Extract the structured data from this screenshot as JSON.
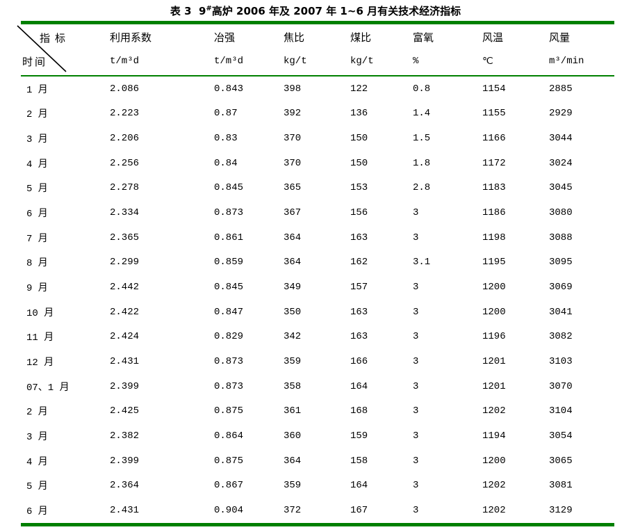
{
  "page": {
    "background": "#ffffff"
  },
  "colors": {
    "border_green": "#008000",
    "text": "#000000",
    "diagonal": "#000000"
  },
  "title": {
    "prefix": "表 3  9",
    "superscript": "#",
    "suffix": "高炉 2006 年及 2007 年 1~6 月有关技术经济指标"
  },
  "table": {
    "corner": {
      "top_right": "指标",
      "bottom_left": "时间"
    },
    "columns": [
      {
        "label": "利用系数",
        "unit": "t/m³d"
      },
      {
        "label": "冶强",
        "unit": "t/m³d"
      },
      {
        "label": "焦比",
        "unit": "kg/t"
      },
      {
        "label": "煤比",
        "unit": "kg/t"
      },
      {
        "label": "富氧",
        "unit": "%"
      },
      {
        "label": "风温",
        "unit": "℃"
      },
      {
        "label": "风量",
        "unit": "m³/min"
      }
    ],
    "rows": [
      {
        "time": "1 月",
        "values": [
          "2.086",
          "0.843",
          "398",
          "122",
          "0.8",
          "1154",
          "2885"
        ]
      },
      {
        "time": "2 月",
        "values": [
          "2.223",
          "0.87",
          "392",
          "136",
          "1.4",
          "1155",
          "2929"
        ]
      },
      {
        "time": "3 月",
        "values": [
          "2.206",
          "0.83",
          "370",
          "150",
          "1.5",
          "1166",
          "3044"
        ]
      },
      {
        "time": "4 月",
        "values": [
          "2.256",
          "0.84",
          "370",
          "150",
          "1.8",
          "1172",
          "3024"
        ]
      },
      {
        "time": "5 月",
        "values": [
          "2.278",
          "0.845",
          "365",
          "153",
          "2.8",
          "1183",
          "3045"
        ]
      },
      {
        "time": "6 月",
        "values": [
          "2.334",
          "0.873",
          "367",
          "156",
          "3",
          "1186",
          "3080"
        ]
      },
      {
        "time": "7 月",
        "values": [
          "2.365",
          "0.861",
          "364",
          "163",
          "3",
          "1198",
          "3088"
        ]
      },
      {
        "time": "8 月",
        "values": [
          "2.299",
          "0.859",
          "364",
          "162",
          "3.1",
          "1195",
          "3095"
        ]
      },
      {
        "time": "9 月",
        "values": [
          "2.442",
          "0.845",
          "349",
          "157",
          "3",
          "1200",
          "3069"
        ]
      },
      {
        "time": "10 月",
        "values": [
          "2.422",
          "0.847",
          "350",
          "163",
          "3",
          "1200",
          "3041"
        ]
      },
      {
        "time": "11 月",
        "values": [
          "2.424",
          "0.829",
          "342",
          "163",
          "3",
          "1196",
          "3082"
        ]
      },
      {
        "time": "12 月",
        "values": [
          "2.431",
          "0.873",
          "359",
          "166",
          "3",
          "1201",
          "3103"
        ]
      },
      {
        "time": "07、1 月",
        "values": [
          "2.399",
          "0.873",
          "358",
          "164",
          "3",
          "1201",
          "3070"
        ]
      },
      {
        "time": "2 月",
        "values": [
          "2.425",
          "0.875",
          "361",
          "168",
          "3",
          "1202",
          "3104"
        ]
      },
      {
        "time": "3 月",
        "values": [
          "2.382",
          "0.864",
          "360",
          "159",
          "3",
          "1194",
          "3054"
        ]
      },
      {
        "time": "4 月",
        "values": [
          "2.399",
          "0.875",
          "364",
          "158",
          "3",
          "1200",
          "3065"
        ]
      },
      {
        "time": "5 月",
        "values": [
          "2.364",
          "0.867",
          "359",
          "164",
          "3",
          "1202",
          "3081"
        ]
      },
      {
        "time": "6 月",
        "values": [
          "2.431",
          "0.904",
          "372",
          "167",
          "3",
          "1202",
          "3129"
        ]
      }
    ]
  }
}
